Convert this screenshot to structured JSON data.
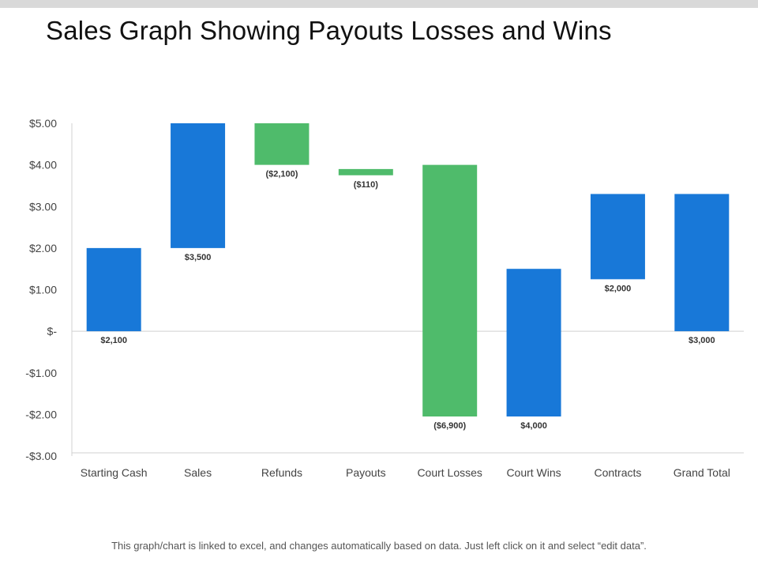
{
  "page": {
    "title": "Sales Graph Showing Payouts Losses and Wins",
    "footnote": "This graph/chart is linked to excel, and changes automatically based on data. Just left click on it and select “edit data”."
  },
  "chart_data": {
    "type": "bar",
    "subtype": "waterfall",
    "title": "Sales Graph Showing Payouts Losses and Wins",
    "xlabel": "",
    "ylabel": "",
    "ylim": [
      -3,
      5
    ],
    "yticks": [
      {
        "value": 5,
        "label": "$5.00"
      },
      {
        "value": 4,
        "label": "$4.00"
      },
      {
        "value": 3,
        "label": "$3.00"
      },
      {
        "value": 2,
        "label": "$2.00"
      },
      {
        "value": 1,
        "label": "$1.00"
      },
      {
        "value": 0,
        "label": "$-"
      },
      {
        "value": -1,
        "label": "-$1.00"
      },
      {
        "value": -2,
        "label": "-$2.00"
      },
      {
        "value": -3,
        "label": "-$3.00"
      }
    ],
    "categories": [
      "Starting Cash",
      "Sales",
      "Refunds",
      "Payouts",
      "Court Losses",
      "Court Wins",
      "Contracts",
      "Grand Total"
    ],
    "bars": [
      {
        "category": "Starting Cash",
        "start": 0,
        "end": 2.0,
        "label": "$2,100",
        "kind": "increase"
      },
      {
        "category": "Sales",
        "start": 2.0,
        "end": 5.0,
        "label": "$3,500",
        "kind": "increase"
      },
      {
        "category": "Refunds",
        "start": 5.0,
        "end": 4.0,
        "label": "($2,100)",
        "kind": "decrease"
      },
      {
        "category": "Payouts",
        "start": 3.9,
        "end": 3.75,
        "label": "($110)",
        "kind": "decrease"
      },
      {
        "category": "Court Losses",
        "start": 4.0,
        "end": -2.05,
        "label": "($6,900)",
        "kind": "decrease"
      },
      {
        "category": "Court Wins",
        "start": -2.05,
        "end": 1.5,
        "label": "$4,000",
        "kind": "increase"
      },
      {
        "category": "Contracts",
        "start": 1.25,
        "end": 3.3,
        "label": "$2,000",
        "kind": "increase"
      },
      {
        "category": "Grand Total",
        "start": 0,
        "end": 3.3,
        "label": "$3,000",
        "kind": "increase"
      }
    ],
    "colors": {
      "increase": "#1878d8",
      "decrease": "#4fbb6b",
      "axis": "#d0d0d0"
    }
  }
}
